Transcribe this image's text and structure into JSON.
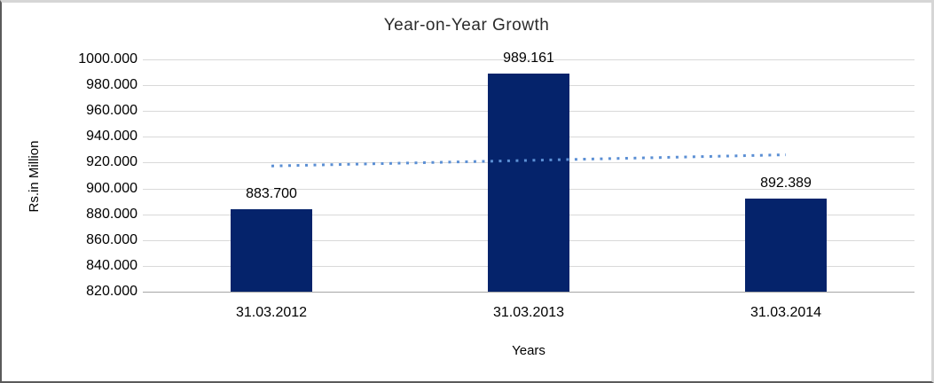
{
  "chart_data": {
    "type": "bar",
    "title": "Year-on-Year Growth",
    "xlabel": "Years",
    "ylabel": "Rs.in Million",
    "categories": [
      "31.03.2012",
      "31.03.2013",
      "31.03.2014"
    ],
    "values": [
      883.7,
      989.161,
      892.389
    ],
    "data_labels": [
      "883.700",
      "989.161",
      "892.389"
    ],
    "ylim": [
      820,
      1000
    ],
    "ytick_step": 20,
    "ytick_labels": [
      "1000.000",
      "980.000",
      "960.000",
      "940.000",
      "920.000",
      "900.000",
      "880.000",
      "860.000",
      "840.000",
      "820.000"
    ],
    "grid": true,
    "legend": false,
    "bar_color": "#05236b",
    "trendline": {
      "type": "linear",
      "style": "dotted",
      "color": "#5b8fd4"
    },
    "gridline_color": "#d9d9d9",
    "axisline_color": "#a6a6a6"
  }
}
